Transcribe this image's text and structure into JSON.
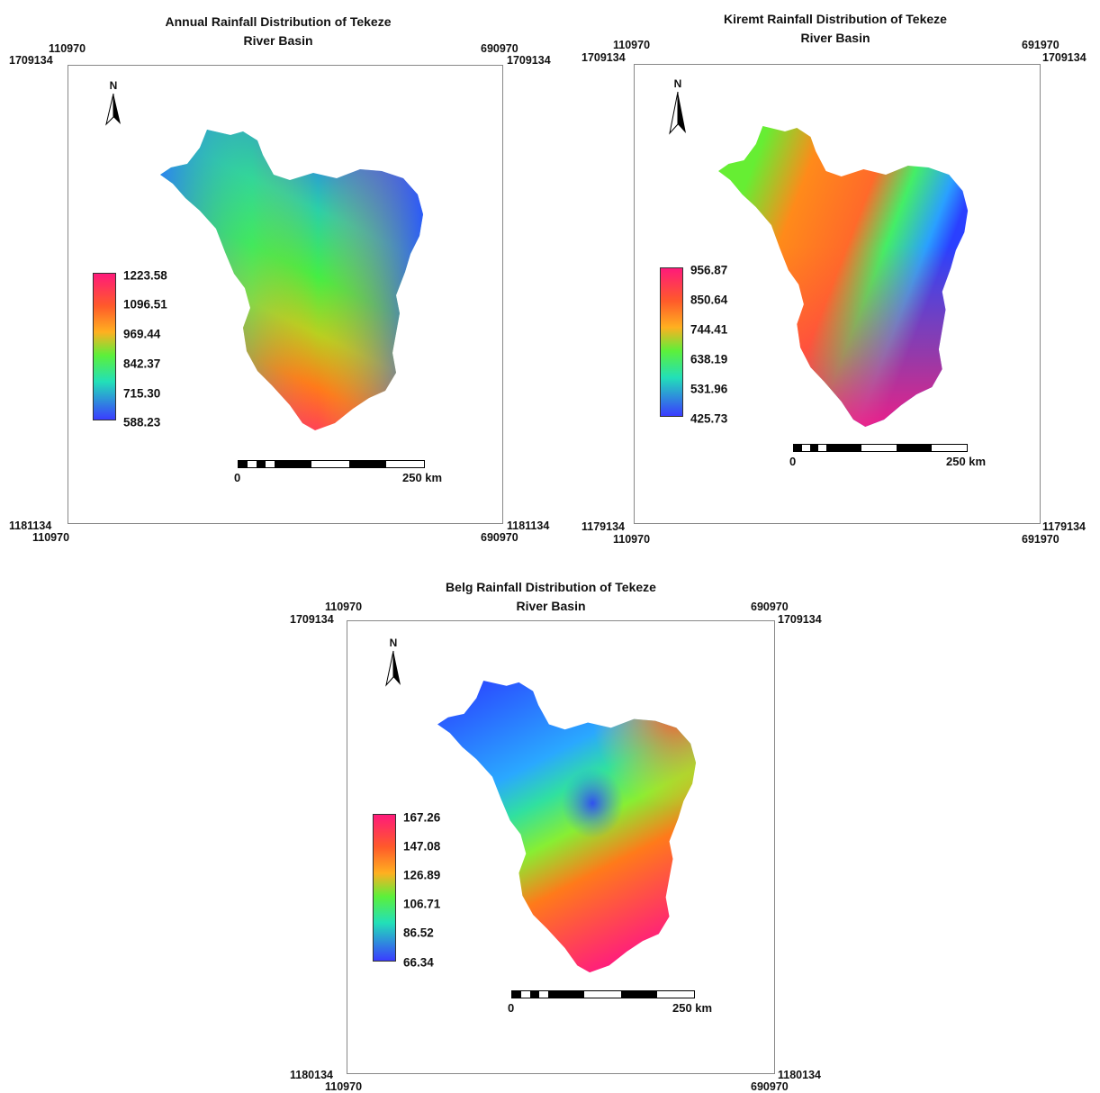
{
  "maps": [
    {
      "title_line1": "Annual Rainfall Distribution of Tekeze",
      "title_line2": "River Basin",
      "coords": {
        "top_left_x": "110970",
        "top_left_y": "1709134",
        "top_right_x": "690970",
        "top_right_y": "1709134",
        "bottom_left_y": "1181134",
        "bottom_left_x": "110970",
        "bottom_right_y": "1181134",
        "bottom_right_x": "690970"
      },
      "north": "N",
      "legend": [
        "1223.58",
        "1096.51",
        "969.44",
        "842.37",
        "715.30",
        "588.23"
      ],
      "scale": {
        "start": "0",
        "end": "250 km"
      }
    },
    {
      "title_line1": "Kiremt Rainfall Distribution of Tekeze",
      "title_line2": "River Basin",
      "coords": {
        "top_left_x": "110970",
        "top_left_y": "1709134",
        "top_right_x": "691970",
        "top_right_y": "1709134",
        "bottom_left_y": "1179134",
        "bottom_left_x": "110970",
        "bottom_right_y": "1179134",
        "bottom_right_x": "691970"
      },
      "north": "N",
      "legend": [
        "956.87",
        "850.64",
        "744.41",
        "638.19",
        "531.96",
        "425.73"
      ],
      "scale": {
        "start": "0",
        "end": "250 km"
      }
    },
    {
      "title_line1": "Belg Rainfall Distribution of Tekeze",
      "title_line2": "River Basin",
      "coords": {
        "top_left_x": "110970",
        "top_left_y": "1709134",
        "top_right_x": "690970",
        "top_right_y": "1709134",
        "bottom_left_y": "1180134",
        "bottom_left_x": "110970",
        "bottom_right_y": "1180134",
        "bottom_right_x": "690970"
      },
      "north": "N",
      "legend": [
        "167.26",
        "147.08",
        "126.89",
        "106.71",
        "86.52",
        "66.34"
      ],
      "scale": {
        "start": "0",
        "end": "250 km"
      }
    }
  ],
  "colors": {
    "legend_top": "#ff1a75",
    "legend_upper": "#ff7a1a",
    "legend_mid": "#3ef03e",
    "legend_bottom": "#2a3cff",
    "frame": "#888888"
  }
}
